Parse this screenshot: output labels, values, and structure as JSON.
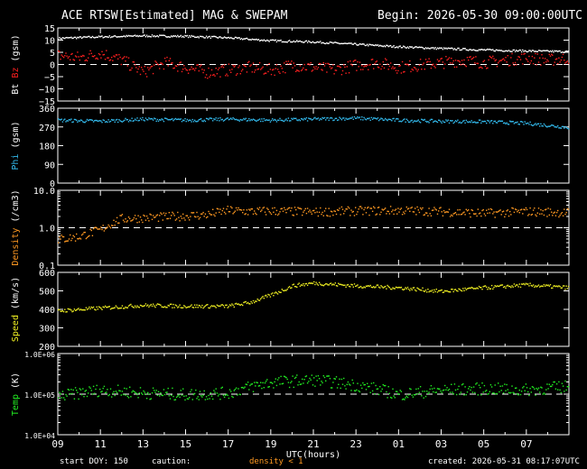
{
  "header": {
    "title": "ACE RTSW[Estimated] MAG & SWEPAM",
    "begin": "Begin: 2026-05-30 09:00:00UTC"
  },
  "footer": {
    "start_doy": "start DOY: 150",
    "caution": "caution:",
    "density_caution": "density < 1",
    "created": "created: 2026-05-31 08:17:07UTC"
  },
  "colors": {
    "bt": "#ffffff",
    "bz": "#ff2020",
    "phi": "#33bbee",
    "density": "#ff9922",
    "speed": "#eeee22",
    "temp": "#22ee22",
    "axis": "#ffffff"
  },
  "chart_data": {
    "type": "scatter",
    "x_axis": {
      "label": "UTC(hours)",
      "tick_labels": [
        "09",
        "11",
        "13",
        "15",
        "17",
        "19",
        "21",
        "23",
        "01",
        "03",
        "05",
        "07"
      ],
      "range_hours": [
        0,
        24
      ]
    },
    "panels": [
      {
        "id": "mag",
        "ylabel_parts": [
          {
            "text": "Bt",
            "color": "#ffffff"
          },
          {
            "text": "Bz",
            "color": "#ff2020"
          },
          {
            "text": "(gsm)",
            "color": "#ffffff"
          }
        ],
        "scale": "linear",
        "ylim": [
          -15,
          15
        ],
        "ticks": [
          {
            "v": 15,
            "l": "15"
          },
          {
            "v": 10,
            "l": "10"
          },
          {
            "v": 5,
            "l": "5"
          },
          {
            "v": 0,
            "l": "0"
          },
          {
            "v": -5,
            "l": "−5"
          },
          {
            "v": -10,
            "l": "−10"
          },
          {
            "v": -15,
            "l": "−15"
          }
        ],
        "ref_line": 0,
        "series": [
          {
            "color": "#ffffff",
            "jitter": 0.4,
            "points": [
              [
                0,
                11
              ],
              [
                2,
                11.6
              ],
              [
                4,
                12
              ],
              [
                6,
                11.8
              ],
              [
                8,
                11.2
              ],
              [
                10,
                10
              ],
              [
                12,
                9.5
              ],
              [
                14,
                8.5
              ],
              [
                16,
                7.5
              ],
              [
                18,
                6.8
              ],
              [
                20,
                6.2
              ],
              [
                22,
                5.8
              ],
              [
                24,
                5.5
              ]
            ]
          },
          {
            "color": "#ff2020",
            "jitter": 2.5,
            "points": [
              [
                0,
                4
              ],
              [
                1,
                3
              ],
              [
                2,
                5
              ],
              [
                3,
                2
              ],
              [
                4,
                -3
              ],
              [
                5,
                1
              ],
              [
                6,
                -1
              ],
              [
                7,
                -3
              ],
              [
                8,
                -2
              ],
              [
                9,
                -1
              ],
              [
                10,
                -2
              ],
              [
                11,
                0
              ],
              [
                12,
                -1
              ],
              [
                13,
                -2
              ],
              [
                14,
                0
              ],
              [
                15,
                1
              ],
              [
                16,
                -1
              ],
              [
                17,
                0
              ],
              [
                18,
                1
              ],
              [
                19,
                2
              ],
              [
                20,
                1
              ],
              [
                21,
                2
              ],
              [
                22,
                3
              ],
              [
                23,
                2
              ],
              [
                24,
                3
              ]
            ]
          }
        ]
      },
      {
        "id": "phi",
        "ylabel_parts": [
          {
            "text": "Phi",
            "color": "#33bbee"
          },
          {
            "text": "(gsm)",
            "color": "#ffffff"
          }
        ],
        "scale": "linear",
        "ylim": [
          0,
          360
        ],
        "ticks": [
          {
            "v": 360,
            "l": "360"
          },
          {
            "v": 270,
            "l": "270"
          },
          {
            "v": 180,
            "l": "180"
          },
          {
            "v": 90,
            "l": "90"
          },
          {
            "v": 0,
            "l": "0"
          }
        ],
        "series": [
          {
            "color": "#33bbee",
            "jitter": 8,
            "points": [
              [
                0,
                305
              ],
              [
                2,
                300
              ],
              [
                4,
                310
              ],
              [
                6,
                305
              ],
              [
                8,
                310
              ],
              [
                10,
                305
              ],
              [
                12,
                310
              ],
              [
                14,
                315
              ],
              [
                16,
                305
              ],
              [
                18,
                300
              ],
              [
                20,
                298
              ],
              [
                22,
                290
              ],
              [
                23,
                280
              ],
              [
                24,
                270
              ]
            ]
          }
        ]
      },
      {
        "id": "density",
        "ylabel_parts": [
          {
            "text": "Density",
            "color": "#ff9922"
          },
          {
            "text": "(/cm3)",
            "color": "#ffffff"
          }
        ],
        "scale": "log",
        "ylim": [
          0.1,
          10
        ],
        "ticks": [
          {
            "v": 10,
            "l": "10.0"
          },
          {
            "v": 1,
            "l": "1.0"
          },
          {
            "v": 0.1,
            "l": "0.1"
          }
        ],
        "ref_line": 1,
        "series": [
          {
            "color": "#ff9922",
            "jitter": 0.12,
            "points": [
              [
                0,
                0.5
              ],
              [
                1,
                0.6
              ],
              [
                2,
                0.9
              ],
              [
                3,
                1.8
              ],
              [
                5,
                2.0
              ],
              [
                7,
                2.3
              ],
              [
                8,
                3.0
              ],
              [
                9,
                2.8
              ],
              [
                10,
                2.9
              ],
              [
                12,
                2.7
              ],
              [
                14,
                2.9
              ],
              [
                16,
                3.0
              ],
              [
                18,
                2.8
              ],
              [
                20,
                2.5
              ],
              [
                22,
                2.8
              ],
              [
                24,
                2.6
              ]
            ]
          }
        ]
      },
      {
        "id": "speed",
        "ylabel_parts": [
          {
            "text": "Speed",
            "color": "#eeee22"
          },
          {
            "text": "(km/s)",
            "color": "#ffffff"
          }
        ],
        "scale": "linear",
        "ylim": [
          200,
          600
        ],
        "ticks": [
          {
            "v": 600,
            "l": "600"
          },
          {
            "v": 500,
            "l": "500"
          },
          {
            "v": 400,
            "l": "400"
          },
          {
            "v": 300,
            "l": "300"
          },
          {
            "v": 200,
            "l": "200"
          }
        ],
        "series": [
          {
            "color": "#eeee22",
            "jitter": 10,
            "points": [
              [
                0,
                395
              ],
              [
                2,
                410
              ],
              [
                4,
                425
              ],
              [
                6,
                420
              ],
              [
                8,
                420
              ],
              [
                9,
                440
              ],
              [
                10,
                480
              ],
              [
                11,
                530
              ],
              [
                12,
                545
              ],
              [
                14,
                530
              ],
              [
                16,
                520
              ],
              [
                18,
                500
              ],
              [
                20,
                520
              ],
              [
                22,
                535
              ],
              [
                24,
                520
              ]
            ]
          }
        ]
      },
      {
        "id": "temp",
        "ylabel_parts": [
          {
            "text": "Temp",
            "color": "#22ee22"
          },
          {
            "text": "(K)",
            "color": "#ffffff"
          }
        ],
        "scale": "log",
        "ylim": [
          10000,
          1000000
        ],
        "ticks": [
          {
            "v": 1000000,
            "l": "1.0E+06"
          },
          {
            "v": 100000,
            "l": "1.0E+05"
          },
          {
            "v": 10000,
            "l": "1.0E+04"
          }
        ],
        "ref_line": 100000,
        "series": [
          {
            "color": "#22ee22",
            "jitter": 0.15,
            "points": [
              [
                0,
                90000
              ],
              [
                2,
                130000
              ],
              [
                4,
                110000
              ],
              [
                6,
                100000
              ],
              [
                8,
                110000
              ],
              [
                10,
                200000
              ],
              [
                12,
                230000
              ],
              [
                14,
                170000
              ],
              [
                16,
                100000
              ],
              [
                18,
                130000
              ],
              [
                20,
                140000
              ],
              [
                22,
                130000
              ],
              [
                24,
                160000
              ]
            ]
          }
        ]
      }
    ]
  }
}
